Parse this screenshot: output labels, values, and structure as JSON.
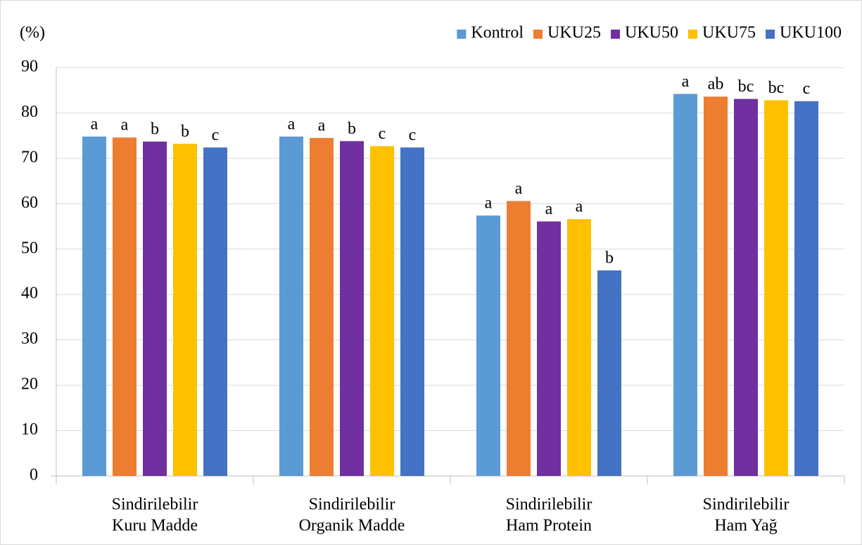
{
  "chart_data": {
    "type": "bar",
    "y_label": "(%)",
    "categories": [
      [
        "Sindirilebilir",
        "Kuru Madde"
      ],
      [
        "Sindirilebilir",
        "Organik Madde"
      ],
      [
        "Sindirilebilir",
        "Ham Protein"
      ],
      [
        "Sindirilebilir",
        "Ham Yağ"
      ]
    ],
    "series": [
      {
        "name": "Kontrol",
        "color": "#5b9bd5",
        "values": [
          74.8,
          74.8,
          57.4,
          84.2
        ],
        "letters": [
          "a",
          "a",
          "a",
          "a"
        ]
      },
      {
        "name": "UKU25",
        "color": "#ed7d31",
        "values": [
          74.6,
          74.5,
          60.6,
          83.6
        ],
        "letters": [
          "a",
          "a",
          "a",
          "ab"
        ]
      },
      {
        "name": "UKU50",
        "color": "#7030a0",
        "values": [
          73.7,
          73.8,
          56.1,
          83.1
        ],
        "letters": [
          "b",
          "b",
          "a",
          "bc"
        ]
      },
      {
        "name": "UKU75",
        "color": "#ffc000",
        "values": [
          73.2,
          72.7,
          56.6,
          82.8
        ],
        "letters": [
          "b",
          "c",
          "a",
          "bc"
        ]
      },
      {
        "name": "UKU100",
        "color": "#4472c4",
        "values": [
          72.4,
          72.4,
          45.3,
          82.6
        ],
        "letters": [
          "c",
          "c",
          "b",
          "c"
        ]
      }
    ],
    "ylim": [
      0,
      90
    ],
    "yticks": [
      0,
      10,
      20,
      30,
      40,
      50,
      60,
      70,
      80,
      90
    ],
    "grid": true,
    "legend": "top-right"
  }
}
